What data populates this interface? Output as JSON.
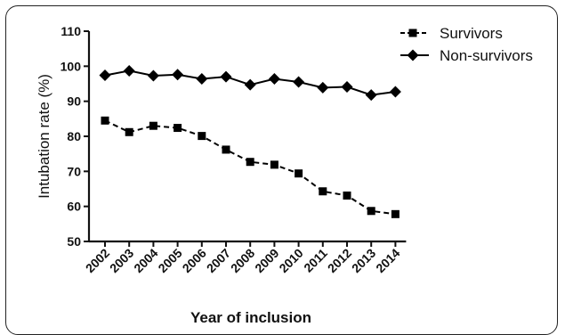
{
  "chart_data": {
    "type": "line",
    "title": "",
    "xlabel": "Year of inclusion",
    "ylabel": "Intubation rate (%)",
    "ylim": [
      50,
      110
    ],
    "yticks": [
      50,
      60,
      70,
      80,
      90,
      100,
      110
    ],
    "categories": [
      "2002",
      "2003",
      "2004",
      "2005",
      "2006",
      "2007",
      "2008",
      "2009",
      "2010",
      "2011",
      "2012",
      "2013",
      "2014"
    ],
    "grid": false,
    "legend_position": "top-right",
    "series": [
      {
        "name": "Survivors",
        "marker": "square",
        "line_style": "dashed",
        "color": "#000000",
        "values": [
          84.5,
          81.2,
          83.0,
          82.4,
          80.1,
          76.2,
          72.7,
          71.9,
          69.4,
          64.3,
          63.1,
          58.7,
          57.8
        ]
      },
      {
        "name": "Non-survivors",
        "marker": "diamond",
        "line_style": "solid",
        "color": "#000000",
        "values": [
          97.4,
          98.7,
          97.3,
          97.6,
          96.4,
          97.0,
          94.7,
          96.4,
          95.5,
          93.9,
          94.1,
          91.8,
          92.7
        ]
      }
    ]
  }
}
